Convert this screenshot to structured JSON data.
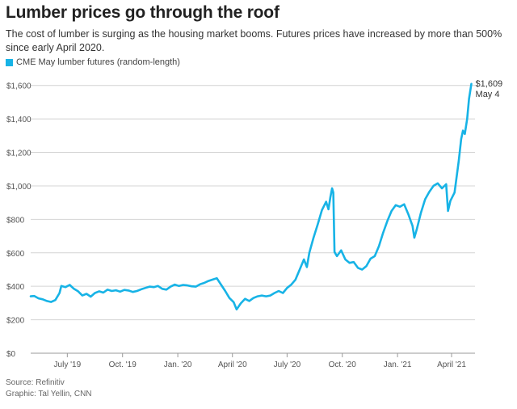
{
  "header": {
    "title": "Lumber prices go through the roof",
    "subtitle": "The cost of lumber is surging as the housing market booms. Futures prices have increased by more than 500% since early April 2020."
  },
  "footer": {
    "source": "Source: Refinitiv",
    "credit": "Graphic: Tal Yellin, CNN"
  },
  "chart_data": {
    "type": "line",
    "title": "Lumber prices go through the roof",
    "legend_position": "top-left",
    "grid": true,
    "ylim": [
      0,
      1700
    ],
    "yticks": [
      {
        "value": 0,
        "label": "$0"
      },
      {
        "value": 200,
        "label": "$200"
      },
      {
        "value": 400,
        "label": "$400"
      },
      {
        "value": 600,
        "label": "$600"
      },
      {
        "value": 800,
        "label": "$800"
      },
      {
        "value": 1000,
        "label": "$1,000"
      },
      {
        "value": 1200,
        "label": "$1,200"
      },
      {
        "value": 1400,
        "label": "$1,400"
      },
      {
        "value": 1600,
        "label": "$1,600"
      }
    ],
    "xlim": [
      "2019-05-01",
      "2021-05-10"
    ],
    "xticks": [
      {
        "date": "2019-07-01",
        "label": "July '19"
      },
      {
        "date": "2019-10-01",
        "label": "Oct. '19"
      },
      {
        "date": "2020-01-01",
        "label": "Jan. '20"
      },
      {
        "date": "2020-04-01",
        "label": "April '20"
      },
      {
        "date": "2020-07-01",
        "label": "July '20"
      },
      {
        "date": "2020-10-01",
        "label": "Oct. '20"
      },
      {
        "date": "2021-01-01",
        "label": "Jan. '21"
      },
      {
        "date": "2021-04-01",
        "label": "April '21"
      }
    ],
    "color": "#17b3e6",
    "series": [
      {
        "name": "CME May lumber futures (random-length)",
        "points": [
          [
            "2019-05-01",
            340
          ],
          [
            "2019-05-07",
            342
          ],
          [
            "2019-05-14",
            328
          ],
          [
            "2019-05-21",
            322
          ],
          [
            "2019-05-28",
            312
          ],
          [
            "2019-06-04",
            306
          ],
          [
            "2019-06-11",
            318
          ],
          [
            "2019-06-18",
            360
          ],
          [
            "2019-06-21",
            402
          ],
          [
            "2019-06-28",
            395
          ],
          [
            "2019-07-05",
            408
          ],
          [
            "2019-07-12",
            385
          ],
          [
            "2019-07-19",
            370
          ],
          [
            "2019-07-26",
            345
          ],
          [
            "2019-08-02",
            355
          ],
          [
            "2019-08-09",
            338
          ],
          [
            "2019-08-16",
            360
          ],
          [
            "2019-08-23",
            370
          ],
          [
            "2019-08-30",
            362
          ],
          [
            "2019-09-06",
            380
          ],
          [
            "2019-09-13",
            372
          ],
          [
            "2019-09-20",
            376
          ],
          [
            "2019-09-27",
            368
          ],
          [
            "2019-10-04",
            378
          ],
          [
            "2019-10-11",
            375
          ],
          [
            "2019-10-18",
            366
          ],
          [
            "2019-10-25",
            372
          ],
          [
            "2019-11-01",
            382
          ],
          [
            "2019-11-08",
            390
          ],
          [
            "2019-11-15",
            398
          ],
          [
            "2019-11-22",
            395
          ],
          [
            "2019-11-29",
            402
          ],
          [
            "2019-12-06",
            385
          ],
          [
            "2019-12-13",
            380
          ],
          [
            "2019-12-20",
            398
          ],
          [
            "2019-12-27",
            410
          ],
          [
            "2020-01-03",
            402
          ],
          [
            "2020-01-10",
            408
          ],
          [
            "2020-01-17",
            405
          ],
          [
            "2020-01-24",
            400
          ],
          [
            "2020-01-31",
            398
          ],
          [
            "2020-02-07",
            412
          ],
          [
            "2020-02-14",
            420
          ],
          [
            "2020-02-21",
            432
          ],
          [
            "2020-02-28",
            440
          ],
          [
            "2020-03-06",
            448
          ],
          [
            "2020-03-13",
            410
          ],
          [
            "2020-03-20",
            372
          ],
          [
            "2020-03-27",
            330
          ],
          [
            "2020-04-03",
            305
          ],
          [
            "2020-04-08",
            262
          ],
          [
            "2020-04-15",
            298
          ],
          [
            "2020-04-22",
            325
          ],
          [
            "2020-04-29",
            312
          ],
          [
            "2020-05-06",
            330
          ],
          [
            "2020-05-13",
            340
          ],
          [
            "2020-05-20",
            345
          ],
          [
            "2020-05-27",
            340
          ],
          [
            "2020-06-03",
            345
          ],
          [
            "2020-06-10",
            360
          ],
          [
            "2020-06-17",
            372
          ],
          [
            "2020-06-24",
            360
          ],
          [
            "2020-07-01",
            390
          ],
          [
            "2020-07-08",
            410
          ],
          [
            "2020-07-15",
            440
          ],
          [
            "2020-07-22",
            500
          ],
          [
            "2020-07-29",
            560
          ],
          [
            "2020-08-03",
            515
          ],
          [
            "2020-08-07",
            600
          ],
          [
            "2020-08-14",
            690
          ],
          [
            "2020-08-21",
            770
          ],
          [
            "2020-08-28",
            855
          ],
          [
            "2020-09-04",
            905
          ],
          [
            "2020-09-08",
            860
          ],
          [
            "2020-09-11",
            930
          ],
          [
            "2020-09-14",
            985
          ],
          [
            "2020-09-16",
            960
          ],
          [
            "2020-09-18",
            605
          ],
          [
            "2020-09-22",
            580
          ],
          [
            "2020-09-29",
            615
          ],
          [
            "2020-10-06",
            560
          ],
          [
            "2020-10-13",
            540
          ],
          [
            "2020-10-20",
            545
          ],
          [
            "2020-10-27",
            510
          ],
          [
            "2020-11-03",
            500
          ],
          [
            "2020-11-10",
            520
          ],
          [
            "2020-11-17",
            565
          ],
          [
            "2020-11-24",
            580
          ],
          [
            "2020-12-01",
            640
          ],
          [
            "2020-12-08",
            720
          ],
          [
            "2020-12-15",
            790
          ],
          [
            "2020-12-22",
            850
          ],
          [
            "2020-12-29",
            885
          ],
          [
            "2021-01-05",
            875
          ],
          [
            "2021-01-12",
            890
          ],
          [
            "2021-01-19",
            830
          ],
          [
            "2021-01-26",
            760
          ],
          [
            "2021-01-29",
            690
          ],
          [
            "2021-02-02",
            740
          ],
          [
            "2021-02-09",
            840
          ],
          [
            "2021-02-16",
            920
          ],
          [
            "2021-02-23",
            965
          ],
          [
            "2021-03-02",
            1000
          ],
          [
            "2021-03-09",
            1015
          ],
          [
            "2021-03-16",
            985
          ],
          [
            "2021-03-23",
            1010
          ],
          [
            "2021-03-26",
            850
          ],
          [
            "2021-03-30",
            910
          ],
          [
            "2021-04-06",
            960
          ],
          [
            "2021-04-13",
            1150
          ],
          [
            "2021-04-17",
            1280
          ],
          [
            "2021-04-20",
            1330
          ],
          [
            "2021-04-23",
            1310
          ],
          [
            "2021-04-27",
            1400
          ],
          [
            "2021-04-30",
            1520
          ],
          [
            "2021-05-04",
            1609
          ]
        ]
      }
    ],
    "annotations": [
      {
        "date": "2021-05-04",
        "value": 1609,
        "value_label": "$1,609",
        "date_label": "May 4"
      }
    ]
  }
}
